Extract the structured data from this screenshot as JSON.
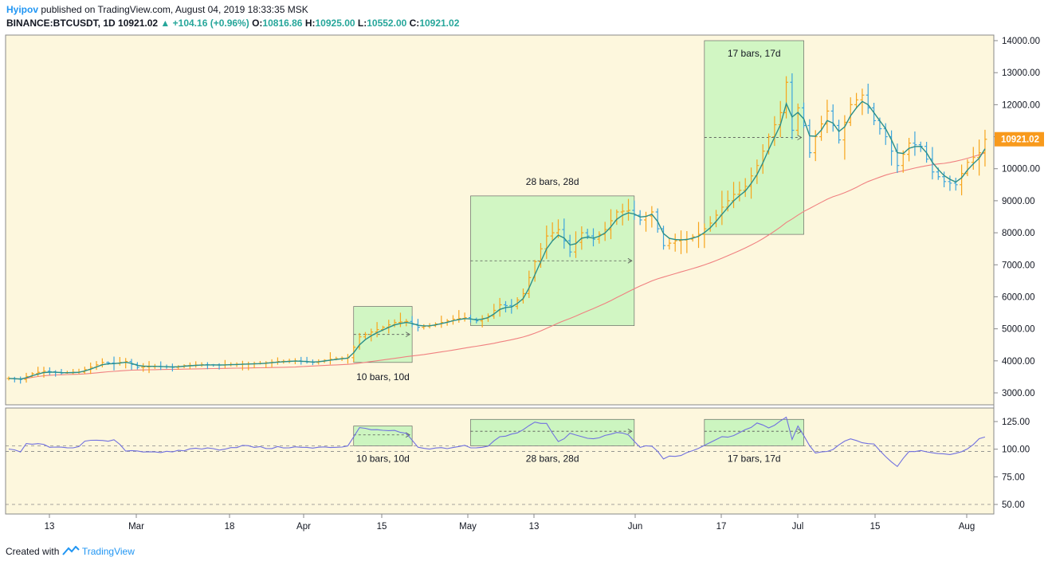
{
  "header": {
    "author": "Hyipov",
    "published_text": "published on TradingView.com, August 04, 2019 18:33:35 MSK",
    "symbol": "BINANCE:BTCUSDT, 1D",
    "last": "10921.02",
    "change": "+104.16 (+0.96%)",
    "o_label": "O:",
    "o_value": "10816.86",
    "h_label": "H:",
    "h_value": "10925.00",
    "l_label": "L:",
    "l_value": "10552.00",
    "c_label": "C:",
    "c_value": "10921.02"
  },
  "footer": {
    "created_with": "Created with",
    "brand": "TradingView"
  },
  "colors": {
    "background": "#fdf7dd",
    "up_bar": "#f7a51c",
    "down_bar": "#3da5dd",
    "ema": "#2a8f8a",
    "sma": "#f08080",
    "range_fill": "#ccf5c0",
    "oscillator": "#7070e0",
    "price_tag": "#f89a1c"
  },
  "chart_data": [
    {
      "type": "line",
      "title": "",
      "x_tick_labels": [
        "13",
        "Mar",
        "18",
        "Apr",
        "15",
        "May",
        "13",
        "Jun",
        "17",
        "Jul",
        "15",
        "Aug"
      ],
      "y_ticks": [
        "3000.00",
        "4000.00",
        "5000.00",
        "6000.00",
        "7000.00",
        "8000.00",
        "9000.00",
        "10000.00",
        "11000.00",
        "12000.00",
        "13000.00",
        "14000.00"
      ],
      "ylim": [
        2500,
        14100
      ],
      "last_price_label": "10921.02",
      "ranges": [
        {
          "label": "10 bars, 10d",
          "start_day": 59,
          "end_day": 69,
          "low": 3950,
          "high": 5700,
          "label_pos": "below"
        },
        {
          "label": "28 bars, 28d",
          "start_day": 79,
          "end_day": 107,
          "low": 5100,
          "high": 9150,
          "label_pos": "above"
        },
        {
          "label": "17 bars, 17d",
          "start_day": 119,
          "end_day": 136,
          "low": 7950,
          "high": 14000,
          "label_pos": "inside-top"
        }
      ],
      "series": [
        {
          "style": "ohlc"
        },
        {
          "style": "ema"
        },
        {
          "style": "sma"
        }
      ],
      "close_keypoints": [
        [
          0,
          3450
        ],
        [
          2,
          3420
        ],
        [
          4,
          3600
        ],
        [
          6,
          3680
        ],
        [
          9,
          3620
        ],
        [
          12,
          3650
        ],
        [
          14,
          3800
        ],
        [
          16,
          3950
        ],
        [
          18,
          3920
        ],
        [
          20,
          3980
        ],
        [
          22,
          3800
        ],
        [
          25,
          3830
        ],
        [
          28,
          3800
        ],
        [
          30,
          3850
        ],
        [
          33,
          3880
        ],
        [
          36,
          3870
        ],
        [
          40,
          3900
        ],
        [
          43,
          3920
        ],
        [
          46,
          3980
        ],
        [
          49,
          4000
        ],
        [
          52,
          3950
        ],
        [
          55,
          4050
        ],
        [
          58,
          4100
        ],
        [
          60,
          4750
        ],
        [
          62,
          4900
        ],
        [
          64,
          5050
        ],
        [
          66,
          5200
        ],
        [
          68,
          5230
        ],
        [
          70,
          5050
        ],
        [
          72,
          5100
        ],
        [
          74,
          5200
        ],
        [
          76,
          5300
        ],
        [
          78,
          5350
        ],
        [
          80,
          5250
        ],
        [
          82,
          5400
        ],
        [
          84,
          5750
        ],
        [
          86,
          5700
        ],
        [
          88,
          6100
        ],
        [
          90,
          7100
        ],
        [
          92,
          7900
        ],
        [
          94,
          8100
        ],
        [
          96,
          7400
        ],
        [
          98,
          8000
        ],
        [
          100,
          7800
        ],
        [
          102,
          8100
        ],
        [
          104,
          8650
        ],
        [
          106,
          8700
        ],
        [
          108,
          8400
        ],
        [
          110,
          8650
        ],
        [
          112,
          7600
        ],
        [
          114,
          7750
        ],
        [
          116,
          7800
        ],
        [
          118,
          7950
        ],
        [
          120,
          8300
        ],
        [
          122,
          8800
        ],
        [
          124,
          9200
        ],
        [
          126,
          9450
        ],
        [
          128,
          10100
        ],
        [
          130,
          11000
        ],
        [
          132,
          11750
        ],
        [
          133,
          12700
        ],
        [
          134,
          11200
        ],
        [
          135,
          11900
        ],
        [
          136,
          11350
        ],
        [
          137,
          10500
        ],
        [
          138,
          11000
        ],
        [
          140,
          11800
        ],
        [
          142,
          10900
        ],
        [
          144,
          12000
        ],
        [
          146,
          12300
        ],
        [
          148,
          11500
        ],
        [
          150,
          11000
        ],
        [
          152,
          10100
        ],
        [
          154,
          10800
        ],
        [
          156,
          10700
        ],
        [
          158,
          9900
        ],
        [
          160,
          9600
        ],
        [
          162,
          9500
        ],
        [
          164,
          10200
        ],
        [
          166,
          10500
        ],
        [
          167,
          10921
        ]
      ]
    },
    {
      "type": "line",
      "title": "",
      "y_ticks": [
        "50.00",
        "75.00",
        "100.00",
        "125.00"
      ],
      "ylim": [
        40,
        135
      ],
      "dashed_levels": [
        50,
        98,
        103
      ],
      "ranges": [
        {
          "label": "10 bars, 10d",
          "start_day": 59,
          "end_day": 69,
          "low": 103,
          "high": 121
        },
        {
          "label": "28 bars, 28d",
          "start_day": 79,
          "end_day": 107,
          "low": 103,
          "high": 127
        },
        {
          "label": "17 bars, 17d",
          "start_day": 119,
          "end_day": 136,
          "low": 103,
          "high": 127
        }
      ],
      "keypoints": [
        [
          0,
          100
        ],
        [
          2,
          97
        ],
        [
          3,
          105
        ],
        [
          6,
          104
        ],
        [
          8,
          101
        ],
        [
          10,
          101
        ],
        [
          12,
          103
        ],
        [
          13,
          108
        ],
        [
          16,
          107
        ],
        [
          18,
          108
        ],
        [
          20,
          99
        ],
        [
          24,
          98
        ],
        [
          28,
          97
        ],
        [
          32,
          101
        ],
        [
          36,
          100
        ],
        [
          40,
          103
        ],
        [
          44,
          101
        ],
        [
          48,
          102
        ],
        [
          52,
          101
        ],
        [
          56,
          102
        ],
        [
          58,
          103
        ],
        [
          60,
          120
        ],
        [
          62,
          117
        ],
        [
          64,
          118
        ],
        [
          66,
          116
        ],
        [
          68,
          114
        ],
        [
          70,
          101
        ],
        [
          72,
          100
        ],
        [
          76,
          101
        ],
        [
          78,
          103
        ],
        [
          80,
          101
        ],
        [
          82,
          103
        ],
        [
          84,
          111
        ],
        [
          86,
          113
        ],
        [
          88,
          118
        ],
        [
          90,
          125
        ],
        [
          92,
          123
        ],
        [
          94,
          106
        ],
        [
          96,
          114
        ],
        [
          98,
          111
        ],
        [
          100,
          109
        ],
        [
          102,
          112
        ],
        [
          104,
          116
        ],
        [
          106,
          112
        ],
        [
          108,
          102
        ],
        [
          110,
          103
        ],
        [
          112,
          92
        ],
        [
          114,
          94
        ],
        [
          116,
          96
        ],
        [
          118,
          100
        ],
        [
          120,
          107
        ],
        [
          122,
          111
        ],
        [
          124,
          112
        ],
        [
          126,
          117
        ],
        [
          128,
          123
        ],
        [
          130,
          119
        ],
        [
          132,
          125
        ],
        [
          133,
          129
        ],
        [
          134,
          109
        ],
        [
          135,
          120
        ],
        [
          136,
          112
        ],
        [
          137,
          103
        ],
        [
          138,
          96
        ],
        [
          140,
          98
        ],
        [
          142,
          103
        ],
        [
          144,
          110
        ],
        [
          146,
          106
        ],
        [
          148,
          104
        ],
        [
          150,
          93
        ],
        [
          152,
          85
        ],
        [
          154,
          98
        ],
        [
          156,
          99
        ],
        [
          158,
          97
        ],
        [
          160,
          96
        ],
        [
          162,
          96
        ],
        [
          164,
          101
        ],
        [
          166,
          109
        ],
        [
          167,
          110
        ]
      ]
    }
  ]
}
